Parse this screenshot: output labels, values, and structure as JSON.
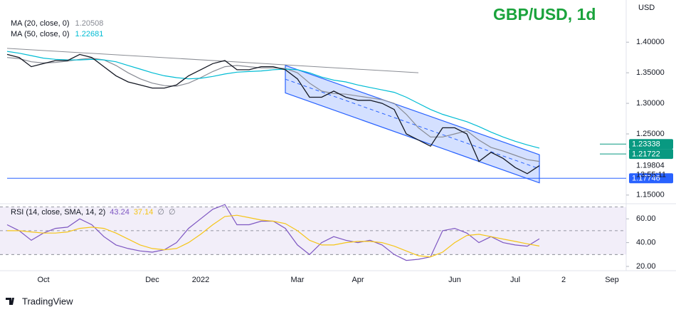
{
  "chart_data": [
    {
      "type": "line",
      "title": "GBP/USD, 1d",
      "y_label": "USD",
      "categories": [
        null,
        null,
        null,
        "Oct",
        null,
        null,
        null,
        null,
        null,
        null,
        null,
        null,
        "Dec",
        null,
        null,
        null,
        "2022",
        null,
        null,
        null,
        null,
        null,
        null,
        null,
        "Mar",
        null,
        null,
        null,
        null,
        "Apr",
        null,
        null,
        null,
        null,
        null,
        null,
        null,
        "Jun",
        null,
        null,
        null,
        null,
        "Jul",
        null,
        null,
        null,
        "2",
        null,
        null,
        null,
        "Sep"
      ],
      "values": [
        1.38,
        1.375,
        1.36,
        1.365,
        1.37,
        1.37,
        1.38,
        1.375,
        1.36,
        1.345,
        1.335,
        1.33,
        1.325,
        1.325,
        1.33,
        1.345,
        1.355,
        1.365,
        1.37,
        1.355,
        1.355,
        1.36,
        1.36,
        1.355,
        1.34,
        1.31,
        1.31,
        1.32,
        1.31,
        1.305,
        1.305,
        1.3,
        1.29,
        1.25,
        1.24,
        1.23,
        1.26,
        1.26,
        1.25,
        1.205,
        1.22,
        1.21,
        1.195,
        1.185,
        1.19804,
        null,
        null,
        null,
        null,
        null,
        null
      ],
      "color": "#131722",
      "countdown": "13:55:11",
      "series": [
        {
          "name": "MA (20, close, 0)",
          "color": "#888b94",
          "values": [
            1.375,
            1.373,
            1.368,
            1.366,
            1.367,
            1.369,
            1.372,
            1.374,
            1.371,
            1.362,
            1.35,
            1.34,
            1.333,
            1.329,
            1.328,
            1.333,
            1.342,
            1.352,
            1.36,
            1.362,
            1.36,
            1.358,
            1.358,
            1.357,
            1.35,
            1.333,
            1.32,
            1.316,
            1.315,
            1.312,
            1.309,
            1.306,
            1.3,
            1.282,
            1.26,
            1.245,
            1.245,
            1.25,
            1.255,
            1.24,
            1.228,
            1.222,
            1.215,
            1.208,
            1.20508,
            null,
            null,
            null,
            null,
            null,
            null
          ]
        },
        {
          "name": "MA (50, close, 0)",
          "color": "#00bcd4",
          "values": [
            1.385,
            1.382,
            1.378,
            1.374,
            1.372,
            1.371,
            1.371,
            1.372,
            1.371,
            1.368,
            1.362,
            1.356,
            1.35,
            1.345,
            1.342,
            1.34,
            1.341,
            1.344,
            1.348,
            1.351,
            1.352,
            1.353,
            1.355,
            1.356,
            1.355,
            1.35,
            1.343,
            1.338,
            1.335,
            1.33,
            1.326,
            1.322,
            1.318,
            1.31,
            1.3,
            1.29,
            1.282,
            1.276,
            1.27,
            1.262,
            1.253,
            1.245,
            1.238,
            1.232,
            1.22681,
            null,
            null,
            null,
            null,
            null,
            null
          ]
        }
      ],
      "levels": [
        {
          "value": 1.23338,
          "color": "#089981",
          "from": 49
        },
        {
          "value": 1.21722,
          "color": "#089981",
          "from": 49
        },
        {
          "value": 1.17746,
          "color": "#2962ff",
          "from": 0
        }
      ],
      "trendline": {
        "from": [
          0,
          1.39
        ],
        "to": [
          34,
          1.35
        ],
        "color": "#8a8d94"
      },
      "channel": {
        "start": 23,
        "end": 44,
        "upper": [
          1.362,
          1.216
        ],
        "lower": [
          1.317,
          1.17
        ],
        "color": "#2962ff"
      },
      "ylim": [
        1.137,
        1.469
      ],
      "yticks": [
        {
          "value": 1.4,
          "label": "1.40000"
        },
        {
          "value": 1.35,
          "label": "1.35000"
        },
        {
          "value": 1.3,
          "label": "1.30000"
        },
        {
          "value": 1.25,
          "label": "1.25000"
        },
        {
          "value": 1.15,
          "label": "1.15000"
        }
      ],
      "grid": false
    },
    {
      "type": "line",
      "title": "RSI (14, close, SMA, 14, 2)",
      "extra_labels": [
        "∅",
        "∅"
      ],
      "series": [
        {
          "name": "RSI",
          "color": "#7e57c2",
          "values": [
            55,
            50,
            42,
            48,
            52,
            53,
            60,
            55,
            45,
            38,
            35,
            33,
            32,
            34,
            40,
            52,
            60,
            68,
            72,
            55,
            55,
            58,
            58,
            52,
            38,
            30,
            40,
            45,
            42,
            40,
            42,
            38,
            30,
            25,
            26,
            28,
            50,
            52,
            48,
            40,
            45,
            40,
            38,
            37,
            43.24,
            null,
            null,
            null,
            null,
            null,
            null
          ]
        },
        {
          "name": "SMA",
          "color": "#f5c518",
          "values": [
            50,
            50,
            49,
            48,
            48,
            49,
            52,
            53,
            52,
            48,
            43,
            38,
            35,
            34,
            35,
            40,
            47,
            55,
            62,
            63,
            61,
            59,
            58,
            56,
            50,
            42,
            38,
            38,
            40,
            41,
            41,
            40,
            37,
            33,
            29,
            28,
            32,
            40,
            46,
            47,
            45,
            43,
            41,
            39,
            37.14,
            null,
            null,
            null,
            null,
            null,
            null
          ]
        }
      ],
      "bands": [
        70,
        50,
        30
      ],
      "ylim": [
        16.4,
        70.3
      ],
      "yticks": [
        {
          "value": 60,
          "label": "60.00"
        },
        {
          "value": 40,
          "label": "40.00"
        },
        {
          "value": 20,
          "label": "20.00"
        }
      ]
    }
  ],
  "footer": {
    "brand": "TradingView"
  }
}
